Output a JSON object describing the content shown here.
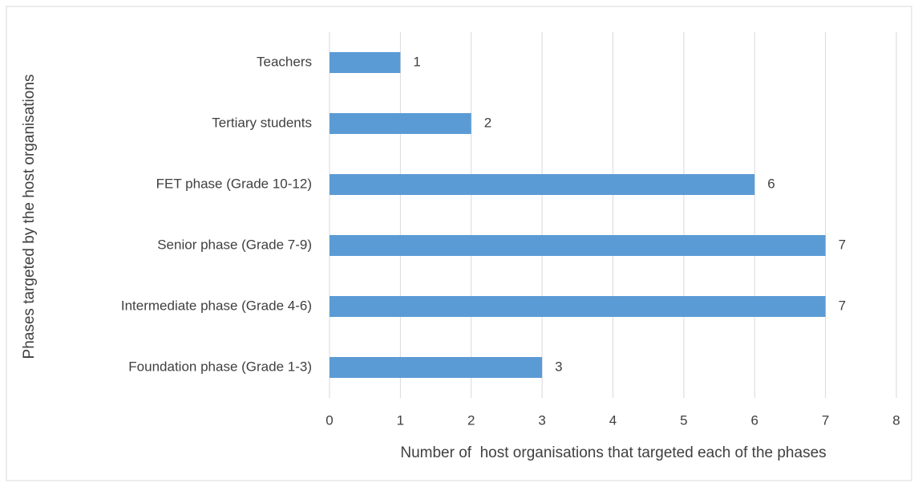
{
  "chart_data": {
    "type": "barh",
    "categories": [
      "Teachers",
      "Tertiary students",
      "FET phase (Grade 10-12)",
      "Senior phase (Grade 7-9)",
      "Intermediate phase (Grade 4-6)",
      "Foundation phase (Grade 1-3)"
    ],
    "values": [
      1,
      2,
      6,
      7,
      7,
      3
    ],
    "color": "#5b9bd5",
    "xlim": [
      0,
      8
    ],
    "xticks": [
      0,
      1,
      2,
      3,
      4,
      5,
      6,
      7,
      8
    ],
    "grid": true,
    "x_label": "Number of  host organisations that targeted each of the phases",
    "y_label": "Phases targeted by the host organisations"
  }
}
